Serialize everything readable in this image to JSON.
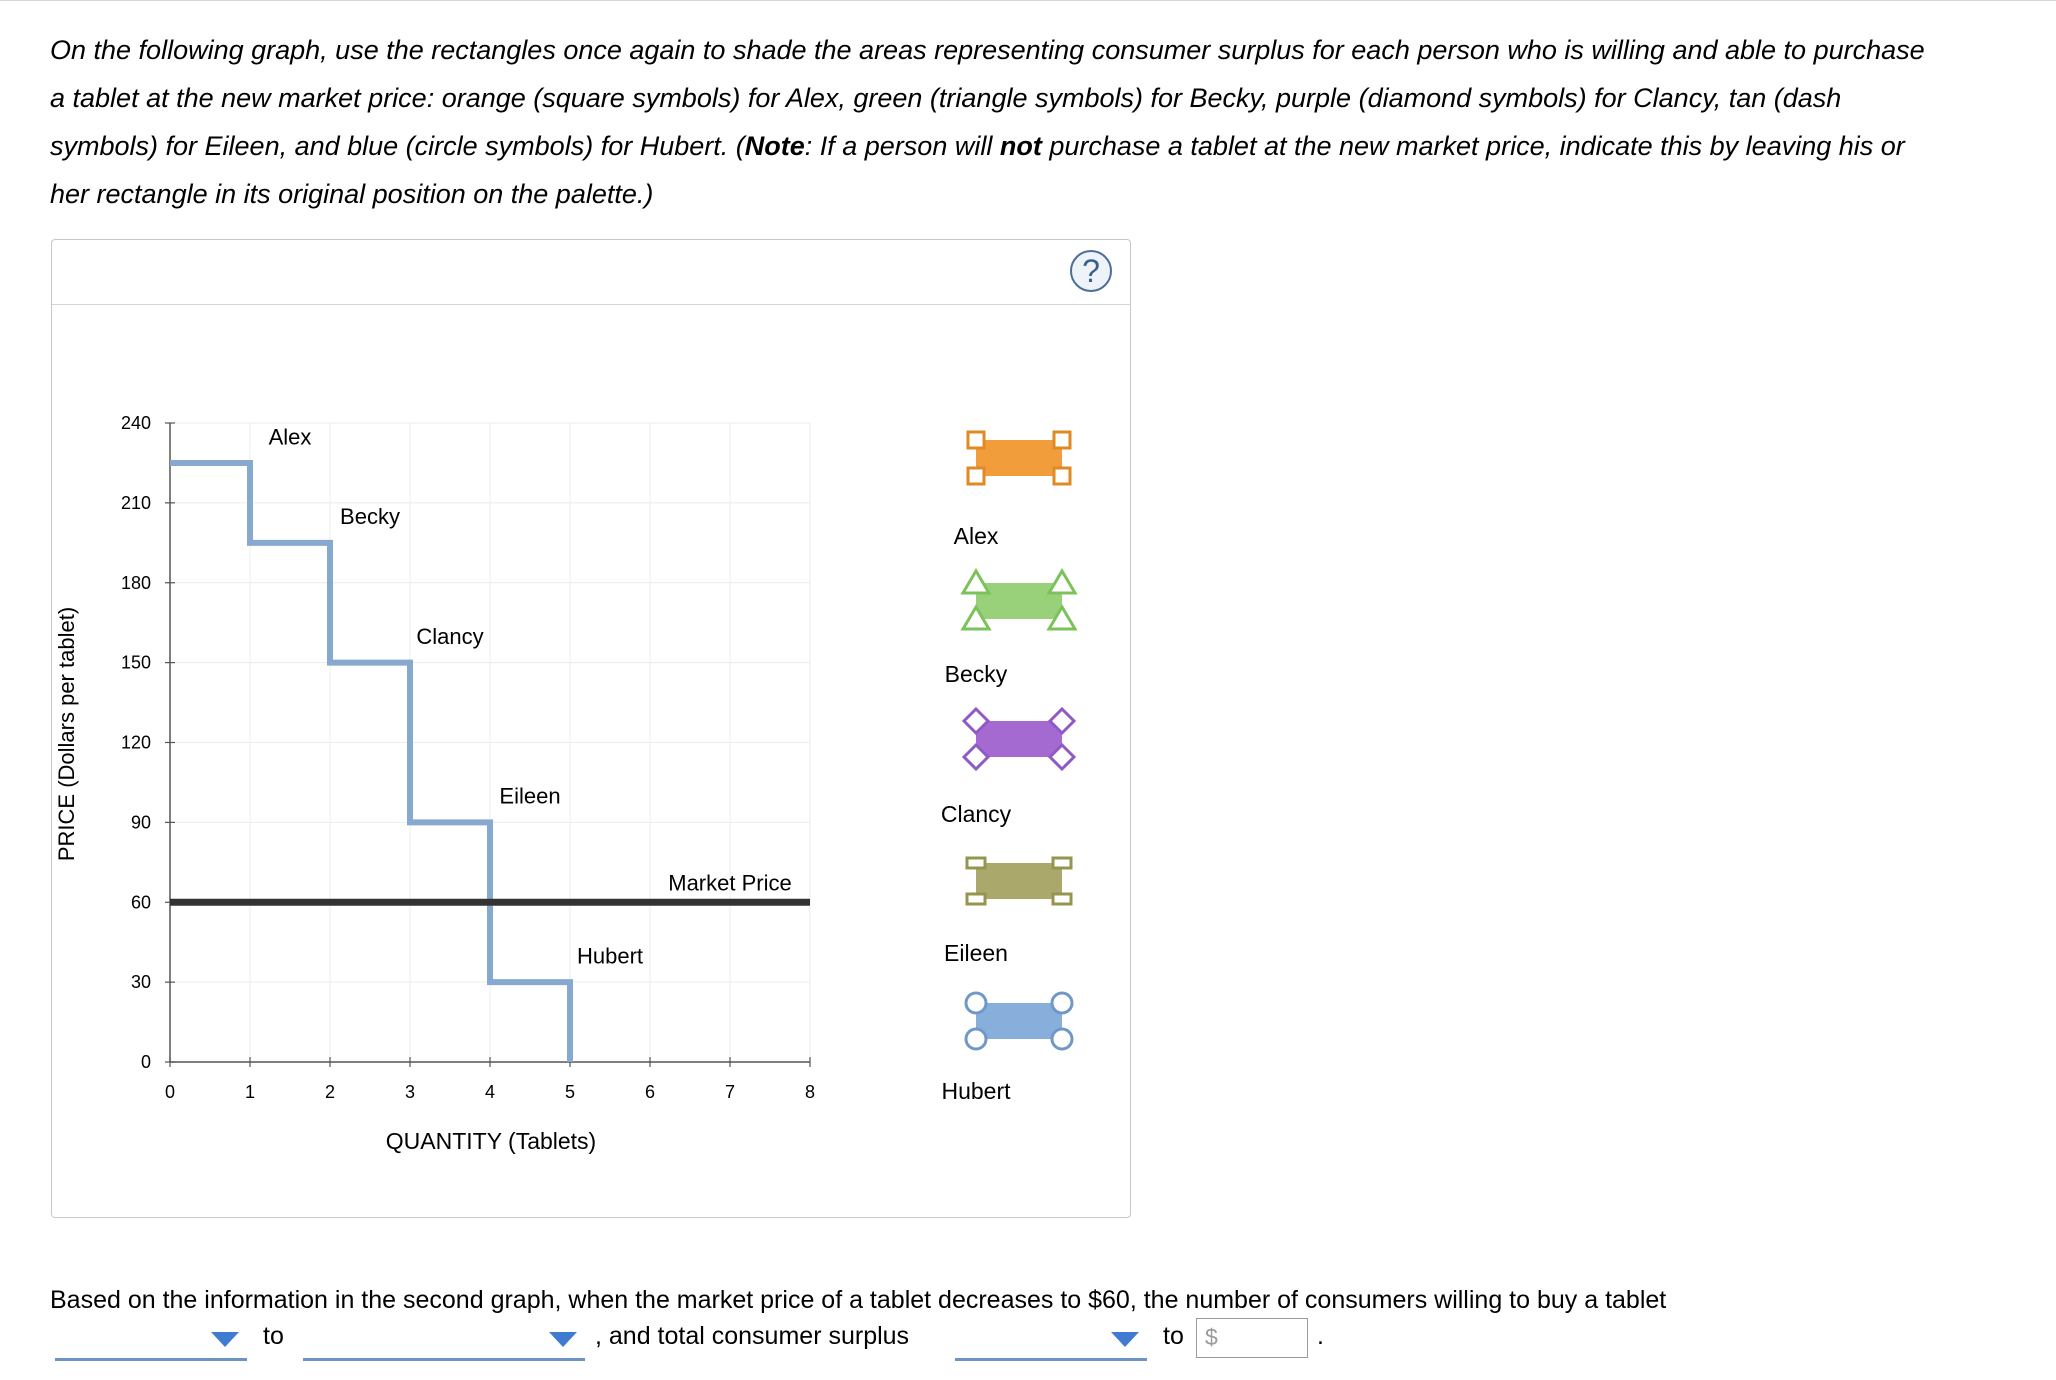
{
  "instructions": {
    "part1": "On the following graph, use the rectangles once again to shade the areas representing consumer surplus for each person who is willing and able to purchase a tablet at the new market price: orange (square symbols) for Alex, green (triangle symbols) for Becky, purple (diamond symbols) for Clancy, tan (dash symbols) for Eileen, and blue (circle symbols) for Hubert. (",
    "note_word": "Note",
    "part2": ": If a person will ",
    "not_word": "not",
    "part3": " purchase a tablet at the new market price, indicate this by leaving his or her rectangle in its original position on the palette.)"
  },
  "help_button": {
    "label": "?"
  },
  "graph": {
    "ylabel": "PRICE (Dollars per tablet)",
    "xlabel": "QUANTITY (Tablets)",
    "market_price_label": "Market Price"
  },
  "chart_data": {
    "type": "line",
    "x_ticks": [
      0,
      1,
      2,
      3,
      4,
      5,
      6,
      7,
      8
    ],
    "y_ticks": [
      0,
      30,
      60,
      90,
      120,
      150,
      180,
      210,
      240
    ],
    "xlim": [
      0,
      8
    ],
    "ylim": [
      0,
      240
    ],
    "grid": true,
    "demand_steps": [
      {
        "name": "Alex",
        "price": 225,
        "from": 0,
        "to": 1
      },
      {
        "name": "Becky",
        "price": 195,
        "from": 1,
        "to": 2
      },
      {
        "name": "Clancy",
        "price": 150,
        "from": 2,
        "to": 3
      },
      {
        "name": "Eileen",
        "price": 90,
        "from": 3,
        "to": 4
      },
      {
        "name": "Hubert",
        "price": 30,
        "from": 4,
        "to": 5
      }
    ],
    "step_labels": [
      {
        "text": "Alex",
        "x": 1.5,
        "y": 232
      },
      {
        "text": "Becky",
        "x": 2.5,
        "y": 202
      },
      {
        "text": "Clancy",
        "x": 3.5,
        "y": 157
      },
      {
        "text": "Eileen",
        "x": 4.5,
        "y": 97
      },
      {
        "text": "Hubert",
        "x": 5.5,
        "y": 37
      }
    ],
    "market_price": 60,
    "demand_color": "#87a9cf",
    "market_color": "#333333"
  },
  "palette": [
    {
      "name": "Alex",
      "color": "#f29d3c",
      "stroke": "#e08a23",
      "symbol": "square"
    },
    {
      "name": "Becky",
      "color": "#99d17a",
      "stroke": "#7cc25a",
      "symbol": "triangle"
    },
    {
      "name": "Clancy",
      "color": "#a46ad1",
      "stroke": "#9059c4",
      "symbol": "diamond"
    },
    {
      "name": "Eileen",
      "color": "#aaa86a",
      "stroke": "#96954f",
      "symbol": "dash"
    },
    {
      "name": "Hubert",
      "color": "#88aedb",
      "stroke": "#6f97c7",
      "symbol": "circle"
    }
  ],
  "question": {
    "text": "Based on the information in the second graph, when the market price of a tablet decreases to $60, the number of consumers willing to buy a tablet",
    "to_word_1": "to",
    "comma_text": ", and total consumer surplus",
    "to_word_2": "to",
    "period": ".",
    "dropdown_1_value": "",
    "dropdown_2_value": "",
    "dropdown_3_value": "",
    "currency_symbol": "$",
    "surplus_value": ""
  }
}
